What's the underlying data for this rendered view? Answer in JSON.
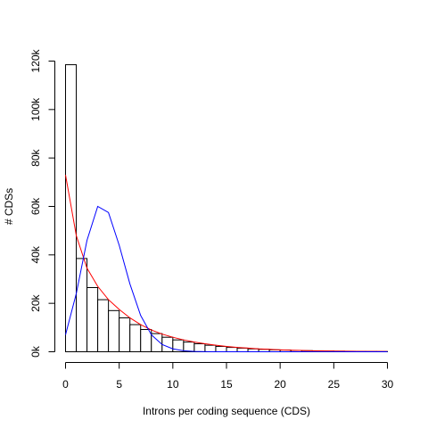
{
  "chart_data": {
    "type": "bar",
    "title": "",
    "xlabel": "Introns per coding sequence (CDS)",
    "ylabel": "# CDSs",
    "xlim": [
      0,
      30
    ],
    "ylim": [
      0,
      120000
    ],
    "grid": false,
    "x_ticks": [
      {
        "value": 0,
        "label": "0"
      },
      {
        "value": 5,
        "label": "5"
      },
      {
        "value": 10,
        "label": "10"
      },
      {
        "value": 15,
        "label": "15"
      },
      {
        "value": 20,
        "label": "20"
      },
      {
        "value": 25,
        "label": "25"
      },
      {
        "value": 30,
        "label": "30"
      }
    ],
    "y_ticks": [
      {
        "value": 0,
        "label": "0k"
      },
      {
        "value": 20000,
        "label": "20k"
      },
      {
        "value": 40000,
        "label": "40k"
      },
      {
        "value": 60000,
        "label": "60k"
      },
      {
        "value": 80000,
        "label": "80k"
      },
      {
        "value": 100000,
        "label": "100k"
      },
      {
        "value": 120000,
        "label": "120k"
      }
    ],
    "histogram": {
      "bin_width": 1,
      "bin_starts": [
        0,
        1,
        2,
        3,
        4,
        5,
        6,
        7,
        8,
        9,
        10,
        11,
        12,
        13,
        14,
        15,
        16,
        17,
        18,
        19,
        20,
        21,
        22,
        23,
        24,
        25,
        26,
        27,
        28,
        29
      ],
      "counts": [
        118500,
        38500,
        26500,
        21500,
        17000,
        14000,
        11200,
        9200,
        7500,
        6000,
        4900,
        4000,
        3300,
        2700,
        2200,
        1800,
        1500,
        1200,
        1000,
        800,
        700,
        550,
        450,
        380,
        300,
        250,
        200,
        150,
        120,
        100
      ],
      "fill": "#ffffff",
      "stroke": "#000000"
    },
    "series": [
      {
        "color": "#ff0000",
        "x": [
          0,
          1,
          2,
          3,
          4,
          5,
          6,
          7,
          8,
          9,
          10,
          11,
          12,
          13,
          14,
          15,
          16,
          17,
          18,
          19,
          20,
          21,
          22,
          23,
          24,
          25,
          26,
          27,
          28,
          29,
          30
        ],
        "values": [
          73000,
          48000,
          34500,
          27000,
          21500,
          17500,
          14000,
          11200,
          9000,
          7300,
          6000,
          4900,
          4000,
          3300,
          2700,
          2200,
          1800,
          1500,
          1200,
          1000,
          800,
          650,
          530,
          430,
          350,
          280,
          230,
          190,
          150,
          120,
          100
        ]
      },
      {
        "color": "#0000ff",
        "x": [
          0,
          1,
          2,
          3,
          4,
          5,
          6,
          7,
          8,
          9,
          10,
          11,
          12,
          13,
          14,
          15,
          16,
          17,
          18,
          19,
          20,
          21,
          22,
          23,
          24,
          25,
          26,
          27,
          28,
          29,
          30
        ],
        "values": [
          7000,
          24000,
          46000,
          60000,
          57500,
          44000,
          28000,
          15000,
          7000,
          3000,
          1200,
          400,
          150,
          50,
          20,
          0,
          0,
          0,
          0,
          0,
          0,
          0,
          0,
          0,
          0,
          0,
          0,
          0,
          0,
          0,
          0
        ]
      }
    ]
  }
}
